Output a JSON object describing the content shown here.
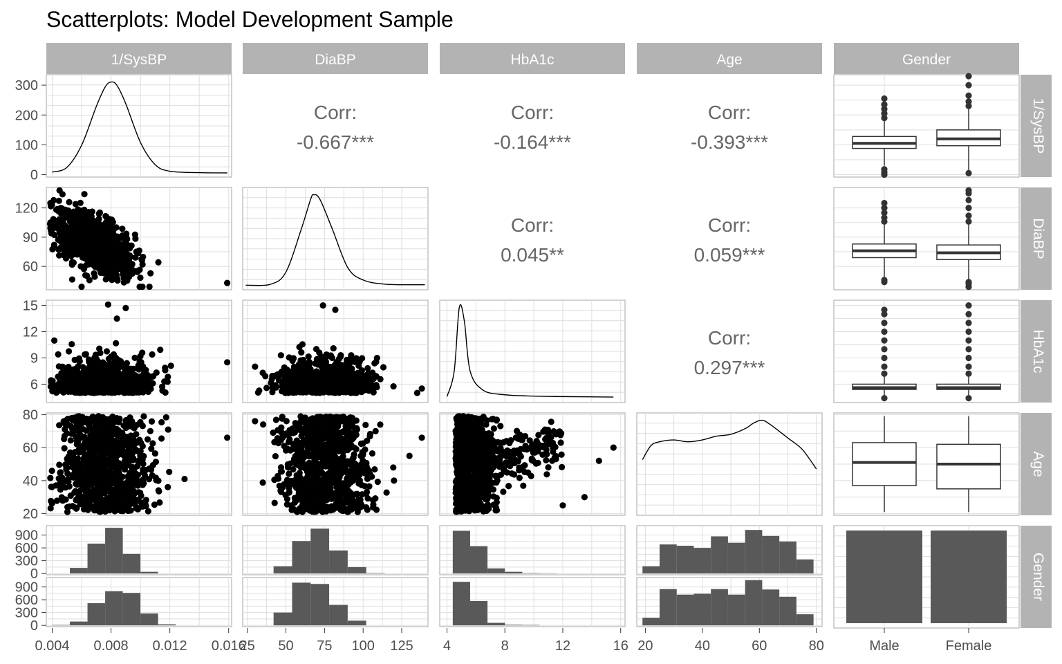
{
  "title": "Scatterplots: Model Development Sample",
  "colors": {
    "strip": "#b3b3b3",
    "strip_text": "#ffffff",
    "panel_border": "#b3b3b3",
    "grid": "#dedede",
    "points": "#000000",
    "bars": "#595959",
    "corr_text": "#666666",
    "tick_text": "#4d4d4d"
  },
  "chart_data": {
    "type": "scatter",
    "subtype": "pairs-matrix",
    "variables": [
      "1/SysBP",
      "DiaBP",
      "HbA1c",
      "Age",
      "Gender"
    ],
    "axes": {
      "1/SysBP": {
        "range": [
          0.0036,
          0.0162
        ],
        "ticks": [
          0.004,
          0.008,
          0.012,
          0.016
        ],
        "tick_labels": [
          "0.004",
          "0.008",
          "0.012",
          "0.016"
        ]
      },
      "DiaBP": {
        "range": [
          22,
          142
        ],
        "ticks": [
          25,
          50,
          75,
          100,
          125
        ],
        "tick_labels": [
          "25",
          "50",
          "75",
          "100",
          "125"
        ],
        "y_ticks": [
          60,
          90,
          120
        ],
        "y_range": [
          36,
          141
        ]
      },
      "HbA1c": {
        "range": [
          3.5,
          16.3
        ],
        "ticks": [
          4,
          8,
          12,
          16
        ],
        "tick_labels": [
          "4",
          "8",
          "12",
          "16"
        ],
        "y_ticks": [
          6,
          9,
          12,
          15
        ],
        "y_range": [
          3.9,
          15.6
        ]
      },
      "Age": {
        "range": [
          17,
          82
        ],
        "ticks": [
          20,
          40,
          60,
          80
        ],
        "tick_labels": [
          "20",
          "40",
          "60",
          "80"
        ],
        "y_ticks": [
          20,
          40,
          60,
          80
        ],
        "y_range": [
          19,
          81
        ]
      },
      "Gender": {
        "categories": [
          "Male",
          "Female"
        ]
      }
    },
    "corr_label": "Corr:",
    "correlations": [
      {
        "row": "1/SysBP",
        "col": "DiaBP",
        "value": "-0.667***"
      },
      {
        "row": "1/SysBP",
        "col": "HbA1c",
        "value": "-0.164***"
      },
      {
        "row": "1/SysBP",
        "col": "Age",
        "value": "-0.393***"
      },
      {
        "row": "DiaBP",
        "col": "HbA1c",
        "value": "0.045**"
      },
      {
        "row": "DiaBP",
        "col": "Age",
        "value": "0.059***"
      },
      {
        "row": "HbA1c",
        "col": "Age",
        "value": "0.297***"
      }
    ],
    "density_row1_y": {
      "ticks": [
        0,
        100,
        200,
        300
      ],
      "tick_labels": [
        "0",
        "100",
        "200",
        "300"
      ],
      "range": [
        -8,
        335
      ]
    },
    "densities": {
      "1/SysBP": [
        [
          0.004,
          3
        ],
        [
          0.005,
          20
        ],
        [
          0.006,
          100
        ],
        [
          0.007,
          240
        ],
        [
          0.0076,
          310
        ],
        [
          0.008,
          328
        ],
        [
          0.0084,
          316
        ],
        [
          0.009,
          250
        ],
        [
          0.01,
          110
        ],
        [
          0.011,
          30
        ],
        [
          0.012,
          6
        ],
        [
          0.014,
          1
        ],
        [
          0.0159,
          0
        ]
      ],
      "DiaBP": [
        [
          24,
          0.002
        ],
        [
          40,
          0.006
        ],
        [
          50,
          0.06
        ],
        [
          60,
          0.25
        ],
        [
          66,
          0.38
        ],
        [
          68,
          0.4
        ],
        [
          72,
          0.38
        ],
        [
          80,
          0.25
        ],
        [
          90,
          0.08
        ],
        [
          100,
          0.025
        ],
        [
          115,
          0.006
        ],
        [
          140,
          0.004
        ]
      ],
      "HbA1c": [
        [
          4.0,
          0.02
        ],
        [
          4.5,
          0.3
        ],
        [
          4.85,
          1.0
        ],
        [
          5.2,
          0.85
        ],
        [
          5.6,
          0.3
        ],
        [
          6.5,
          0.09
        ],
        [
          8.0,
          0.04
        ],
        [
          10.0,
          0.025
        ],
        [
          12.0,
          0.02
        ],
        [
          15.5,
          0.015
        ]
      ],
      "Age": [
        [
          19,
          0.55
        ],
        [
          22,
          0.7
        ],
        [
          25,
          0.74
        ],
        [
          30,
          0.76
        ],
        [
          35,
          0.74
        ],
        [
          40,
          0.76
        ],
        [
          45,
          0.8
        ],
        [
          50,
          0.82
        ],
        [
          55,
          0.88
        ],
        [
          58,
          0.94
        ],
        [
          61,
          0.97
        ],
        [
          64,
          0.92
        ],
        [
          70,
          0.78
        ],
        [
          75,
          0.66
        ],
        [
          80,
          0.45
        ]
      ]
    },
    "scatter": [
      {
        "x": "1/SysBP",
        "y": "DiaBP",
        "center": [
          0.0068,
          84
        ],
        "spread": [
          0.0014,
          14
        ],
        "slope": -7000,
        "outliers": [
          [
            0.0159,
            43
          ],
          [
            0.0045,
            138
          ],
          [
            0.0047,
            134
          ],
          [
            0.0041,
            128
          ]
        ]
      },
      {
        "x": "1/SysBP",
        "y": "HbA1c",
        "center": [
          0.0075,
          6.0
        ],
        "spread": [
          0.0016,
          1.2
        ],
        "slope": 0,
        "outliers": [
          [
            0.0159,
            8.5
          ],
          [
            0.0078,
            15.1
          ],
          [
            0.009,
            14.7
          ],
          [
            0.0084,
            13.5
          ]
        ]
      },
      {
        "x": "DiaBP",
        "y": "HbA1c",
        "center": [
          75,
          6.0
        ],
        "spread": [
          14,
          1.2
        ],
        "slope": 0,
        "outliers": [
          [
            138,
            5.5
          ],
          [
            135,
            5.0
          ],
          [
            74,
            15.0
          ],
          [
            82,
            14.5
          ],
          [
            30,
            8.0
          ]
        ]
      },
      {
        "x": "1/SysBP",
        "y": "Age",
        "center": [
          0.0075,
          50
        ],
        "spread": [
          0.0015,
          16
        ],
        "slope": 0,
        "outliers": [
          [
            0.0159,
            66
          ],
          [
            0.013,
            41
          ]
        ]
      },
      {
        "x": "DiaBP",
        "y": "Age",
        "center": [
          75,
          50
        ],
        "spread": [
          14,
          16
        ],
        "slope": 0,
        "outliers": [
          [
            30,
            76
          ],
          [
            138,
            66
          ],
          [
            130,
            55
          ],
          [
            120,
            40
          ]
        ]
      },
      {
        "x": "HbA1c",
        "y": "Age",
        "center": [
          5.6,
          50
        ],
        "spread": [
          0.8,
          16
        ],
        "slope": 0,
        "outliers": [
          [
            15.5,
            60
          ],
          [
            14.5,
            52
          ],
          [
            13.5,
            30
          ],
          [
            12.0,
            25
          ],
          [
            11.0,
            48
          ]
        ]
      }
    ],
    "boxplots": [
      {
        "row": "1/SysBP",
        "y_ticks": [
          0,
          100,
          200,
          300
        ],
        "y_range": [
          -8,
          335
        ],
        "boxes": [
          {
            "category": "Male",
            "q1": 88,
            "median": 105,
            "q3": 128,
            "whisker_low": 30,
            "whisker_high": 185,
            "outliers": [
              0,
              8,
              18,
              190,
              205,
              220,
              235,
              255
            ]
          },
          {
            "category": "Female",
            "q1": 97,
            "median": 120,
            "q3": 150,
            "whisker_low": 15,
            "whisker_high": 225,
            "outliers": [
              5,
              230,
              245,
              265,
              300,
              330
            ]
          }
        ]
      },
      {
        "row": "DiaBP",
        "y_ticks": [
          60,
          90,
          120
        ],
        "y_range": [
          36,
          141
        ],
        "boxes": [
          {
            "category": "Male",
            "q1": 69,
            "median": 76,
            "q3": 83,
            "whisker_low": 49,
            "whisker_high": 103,
            "outliers": [
              44,
              46,
              106,
              110,
              115,
              120,
              125
            ]
          },
          {
            "category": "Female",
            "q1": 67,
            "median": 74,
            "q3": 82,
            "whisker_low": 47,
            "whisker_high": 103,
            "outliers": [
              39,
              42,
              44,
              106,
              112,
              120,
              128,
              135,
              138
            ]
          }
        ]
      },
      {
        "row": "HbA1c",
        "y_ticks": [
          6,
          9,
          12,
          15
        ],
        "y_range": [
          3.9,
          15.6
        ],
        "boxes": [
          {
            "category": "Male",
            "q1": 5.4,
            "median": 5.6,
            "q3": 6.0,
            "whisker_low": 4.6,
            "whisker_high": 6.9,
            "outliers": [
              4.4,
              7.2,
              8,
              9,
              10,
              11,
              12,
              13,
              14,
              14.5
            ]
          },
          {
            "category": "Female",
            "q1": 5.4,
            "median": 5.6,
            "q3": 6.0,
            "whisker_low": 4.6,
            "whisker_high": 6.9,
            "outliers": [
              4.4,
              7.2,
              8,
              9,
              10,
              11,
              12,
              13,
              14,
              15
            ]
          }
        ]
      },
      {
        "row": "Age",
        "y_ticks": [
          20,
          40,
          60,
          80
        ],
        "y_range": [
          19,
          81
        ],
        "boxes": [
          {
            "category": "Male",
            "q1": 37,
            "median": 51,
            "q3": 63,
            "whisker_low": 21,
            "whisker_high": 79,
            "outliers": []
          },
          {
            "category": "Female",
            "q1": 35,
            "median": 50,
            "q3": 62,
            "whisker_low": 21,
            "whisker_high": 79,
            "outliers": []
          }
        ]
      }
    ],
    "facet_histograms": {
      "y_ticks": [
        0,
        300,
        600,
        900
      ],
      "y_tick_labels": [
        "0",
        "300",
        "600",
        "900"
      ],
      "y_range": [
        -30,
        1120
      ],
      "1/SysBP": {
        "edges": [
          0.004,
          0.0048,
          0.0056,
          0.0064,
          0.0072,
          0.008,
          0.0088,
          0.0096,
          0.0104,
          0.0112,
          0.012,
          0.0128,
          0.0136,
          0.0144,
          0.0152,
          0.016
        ],
        "male": [
          0,
          0,
          0,
          0,
          0,
          0,
          0,
          0,
          0,
          0,
          0,
          0,
          0,
          0,
          0
        ],
        "female": [
          0,
          0,
          0,
          0,
          0,
          0,
          0,
          0,
          0,
          0,
          0,
          0,
          0,
          0,
          0
        ]
      },
      "bins": {
        "1/SysBP": {
          "edges": [
            0.004,
            0.0052,
            0.0064,
            0.0076,
            0.0088,
            0.01,
            0.0112,
            0.0124,
            0.0136,
            0.0148,
            0.016
          ],
          "male": [
            0,
            130,
            700,
            1070,
            460,
            40,
            0,
            0,
            0,
            0
          ],
          "female": [
            10,
            90,
            520,
            800,
            760,
            280,
            25,
            0,
            0,
            0
          ]
        },
        "DiaBP": {
          "edges": [
            30,
            42,
            54,
            66,
            78,
            90,
            102,
            114,
            126,
            138
          ],
          "male": [
            0,
            170,
            760,
            1050,
            540,
            150,
            10,
            0,
            0
          ],
          "female": [
            0,
            300,
            1000,
            970,
            480,
            110,
            0,
            0,
            0
          ]
        },
        "HbA1c": {
          "edges": [
            4.4,
            5.6,
            6.8,
            8.0,
            9.2,
            10.4,
            11.6,
            12.8,
            14.0,
            15.2
          ],
          "male": [
            1000,
            640,
            120,
            40,
            10,
            5,
            0,
            0,
            0
          ],
          "female": [
            1020,
            570,
            60,
            15,
            10,
            0,
            0,
            0,
            0
          ]
        },
        "Age": {
          "edges": [
            19,
            25,
            31,
            37,
            43,
            49,
            55,
            61,
            67,
            73,
            79
          ],
          "male": [
            170,
            680,
            650,
            600,
            870,
            720,
            1020,
            880,
            750,
            330
          ],
          "female": [
            180,
            850,
            720,
            740,
            850,
            720,
            1060,
            840,
            670,
            260
          ]
        }
      }
    },
    "gender_counts": {
      "Male": 1,
      "Female": 1
    }
  }
}
